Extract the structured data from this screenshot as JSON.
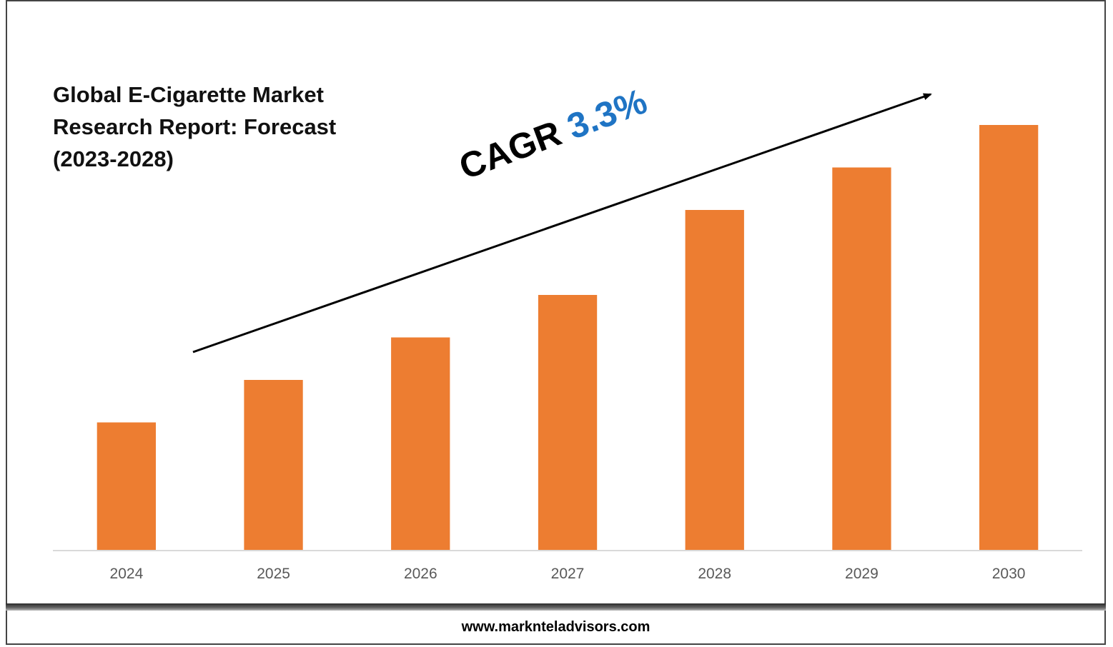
{
  "title_lines": [
    "Global E-Cigarette Market",
    "Research Report: Forecast",
    "(2023-2028)"
  ],
  "annotation": {
    "label": "CAGR",
    "value": "3.3%",
    "label_color": "#000000",
    "value_color": "#1f74c4"
  },
  "footer": {
    "url": "www.marknteladvisors.com"
  },
  "chart_data": {
    "type": "bar",
    "categories": [
      "2024",
      "2025",
      "2026",
      "2027",
      "2028",
      "2029",
      "2030"
    ],
    "series": [
      {
        "values": [
          30,
          40,
          50,
          60,
          80,
          90,
          100
        ],
        "color": "#ed7d31"
      }
    ],
    "ylim": [
      0,
      100
    ],
    "grid": false,
    "legend": "none",
    "trend_arrow": true
  }
}
